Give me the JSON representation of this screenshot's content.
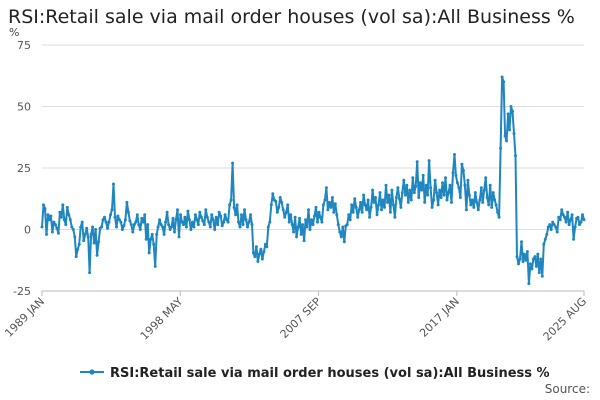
{
  "page": {
    "title": "RSI:Retail sale via mail order houses (vol sa):All Business %",
    "source_label": "Source:",
    "colors": {
      "series": "#1f86c0",
      "grid": "#dedede",
      "axis": "#bbbbbb",
      "text": "#555555"
    }
  },
  "chart_data": {
    "type": "line",
    "title": "RSI:Retail sale via mail order houses (vol sa):All Business %",
    "ylabel": "%",
    "xlabel": "",
    "ylim": [
      -25,
      75
    ],
    "y_ticks": [
      -25,
      0,
      25,
      50,
      75
    ],
    "x_range": [
      "1989-01",
      "2025-08"
    ],
    "x_ticks": [
      "1989 JAN",
      "1998 MAY",
      "2007 SEP",
      "2017 JAN",
      "2025 AUG"
    ],
    "x_tick_dates": [
      "1989-01",
      "1998-05",
      "2007-09",
      "2017-01",
      "2025-08"
    ],
    "grid": "horizontal",
    "legend_position": "bottom",
    "series": [
      {
        "name": "RSI:Retail sale via mail order houses (vol sa):All Business %",
        "color": "#1f86c0",
        "frequency": "monthly",
        "start": "1989-01",
        "values": [
          1.0,
          10.0,
          8.5,
          -2.0,
          6.0,
          4.0,
          5.5,
          -1.0,
          3.0,
          2.0,
          0.5,
          -1.5,
          7.0,
          5.0,
          10.0,
          4.0,
          2.0,
          9.0,
          6.0,
          4.0,
          1.0,
          0.0,
          -3.0,
          -11.0,
          -8.0,
          -6.0,
          1.0,
          3.0,
          -4.5,
          -2.0,
          0.5,
          -3.0,
          -17.5,
          -2.0,
          1.0,
          -5.5,
          0.0,
          -10.5,
          -5.0,
          0.5,
          1.0,
          4.0,
          5.0,
          3.0,
          0.5,
          3.0,
          6.0,
          8.0,
          18.5,
          5.0,
          1.0,
          5.5,
          4.0,
          3.0,
          0.0,
          1.5,
          4.0,
          11.0,
          7.0,
          3.5,
          2.0,
          -1.0,
          2.0,
          3.0,
          6.0,
          2.0,
          0.0,
          4.5,
          3.0,
          6.0,
          -4.0,
          2.0,
          -9.5,
          -4.0,
          -2.0,
          -6.0,
          -15.0,
          -2.0,
          1.0,
          4.0,
          2.0,
          1.0,
          -2.0,
          3.0,
          7.0,
          2.0,
          0.0,
          1.0,
          4.5,
          -1.0,
          4.0,
          8.0,
          -3.0,
          6.0,
          3.0,
          2.0,
          5.0,
          1.0,
          7.5,
          4.0,
          0.0,
          3.0,
          1.0,
          6.0,
          4.0,
          2.0,
          7.0,
          5.0,
          3.5,
          2.0,
          8.0,
          5.0,
          3.0,
          1.0,
          6.0,
          4.0,
          0.0,
          5.0,
          2.0,
          7.0,
          5.5,
          1.5,
          3.0,
          6.0,
          4.0,
          3.0,
          10.0,
          12.0,
          27.0,
          9.0,
          6.0,
          10.0,
          3.0,
          1.0,
          6.0,
          2.0,
          8.0,
          4.0,
          1.0,
          3.0,
          6.0,
          2.0,
          -9.5,
          -11.0,
          -7.0,
          -13.0,
          -10.0,
          -8.0,
          -12.0,
          -9.0,
          -6.0,
          -7.0,
          1.0,
          3.0,
          10.0,
          14.5,
          12.0,
          11.5,
          7.0,
          9.0,
          13.0,
          11.0,
          8.0,
          5.0,
          7.0,
          10.0,
          3.0,
          6.0,
          2.0,
          -1.0,
          5.0,
          -3.0,
          1.0,
          4.5,
          -2.0,
          2.0,
          -4.5,
          4.0,
          1.0,
          8.0,
          0.0,
          4.0,
          2.0,
          5.5,
          9.0,
          3.0,
          7.0,
          5.0,
          3.0,
          10.0,
          12.0,
          17.0,
          8.0,
          11.0,
          9.0,
          13.0,
          7.0,
          10.5,
          6.0,
          2.0,
          -1.0,
          -3.0,
          1.0,
          -5.0,
          1.5,
          2.0,
          6.0,
          4.0,
          10.0,
          7.0,
          12.5,
          9.0,
          5.0,
          8.0,
          11.0,
          7.0,
          14.0,
          10.0,
          8.0,
          12.0,
          5.0,
          9.0,
          16.0,
          11.0,
          13.0,
          6.0,
          10.0,
          15.0,
          8.0,
          12.0,
          9.0,
          18.0,
          11.0,
          14.0,
          7.0,
          16.0,
          10.0,
          5.0,
          13.0,
          17.0,
          12.5,
          9.0,
          15.0,
          20.0,
          14.0,
          18.0,
          11.0,
          16.0,
          12.0,
          21.0,
          15.0,
          17.5,
          27.5,
          13.0,
          19.0,
          16.0,
          22.0,
          11.0,
          18.0,
          14.0,
          28.0,
          17.0,
          9.0,
          12.0,
          20.0,
          15.0,
          10.0,
          16.0,
          13.0,
          19.0,
          14.0,
          21.0,
          12.0,
          15.0,
          18.0,
          11.0,
          23.0,
          30.5,
          22.0,
          19.0,
          17.0,
          13.0,
          26.5,
          24.0,
          18.0,
          8.0,
          20.0,
          14.0,
          10.0,
          12.0,
          9.0,
          15.0,
          11.0,
          8.0,
          12.0,
          17.0,
          11.0,
          16.0,
          21.0,
          13.0,
          10.0,
          18.0,
          9.0,
          15.0,
          12.0,
          10.0,
          7.0,
          5.0,
          33.0,
          62.0,
          60.0,
          38.0,
          36.0,
          47.0,
          40.5,
          50.0,
          48.0,
          39.0,
          30.0,
          -11.0,
          -14.0,
          -12.0,
          -5.0,
          -13.0,
          -10.0,
          -12.5,
          -9.0,
          -22.0,
          -14.0,
          -16.0,
          -12.0,
          -11.0,
          -15.0,
          -10.0,
          -17.5,
          -12.0,
          -19.0,
          -6.0,
          -4.0,
          -2.0,
          1.0,
          2.0,
          0.0,
          3.0,
          2.0,
          1.0,
          -1.0,
          5.0,
          4.0,
          8.0,
          6.0,
          5.0,
          3.0,
          7.0,
          2.0,
          4.0,
          6.0,
          -4.0,
          1.0,
          4.5,
          5.0,
          2.0,
          3.0,
          6.0,
          4.0
        ]
      }
    ]
  }
}
